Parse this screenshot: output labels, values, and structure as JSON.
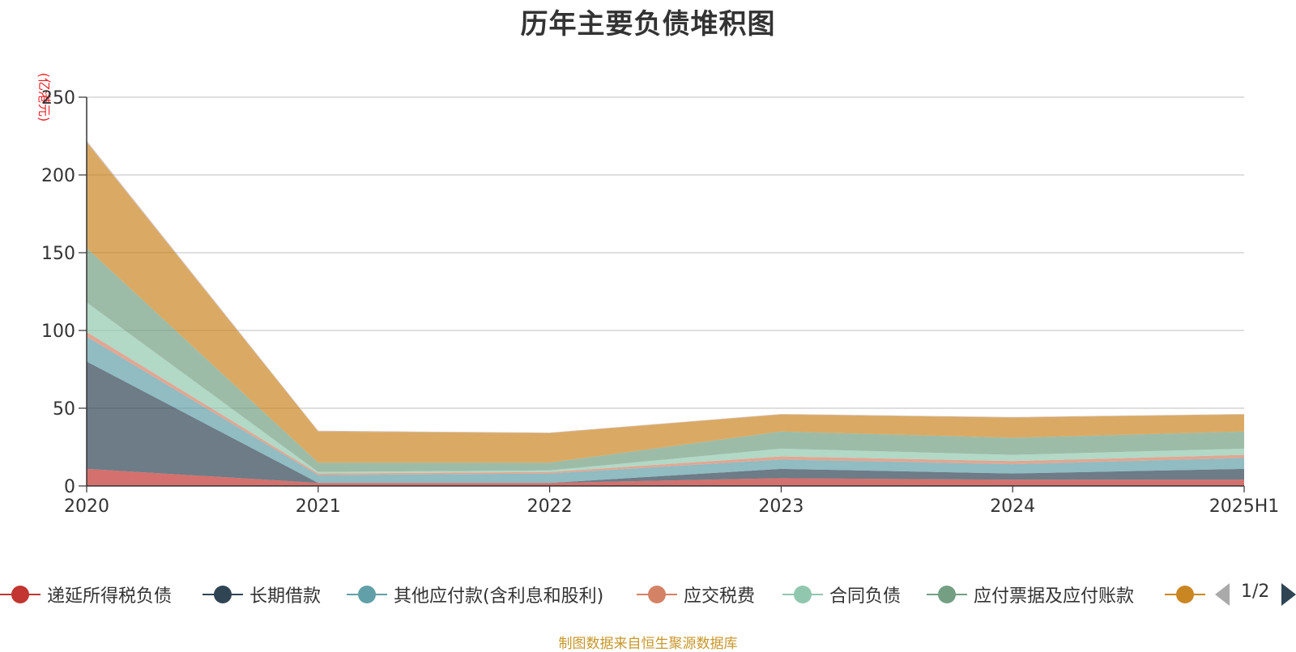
{
  "chart_data": {
    "type": "area",
    "title": "历年主要负债堆积图",
    "unit_label": "(亿港元)",
    "stacked": true,
    "categories": [
      "2020",
      "2021",
      "2022",
      "2023",
      "2024",
      "2025H1"
    ],
    "ylim": [
      0,
      250
    ],
    "yticks": [
      0,
      50,
      100,
      150,
      200,
      250
    ],
    "grid": true,
    "legend_position": "bottom",
    "series": [
      {
        "name": "递延所得税负债",
        "color": "#c23531",
        "values": [
          11,
          2,
          2,
          5,
          4,
          4
        ]
      },
      {
        "name": "长期借款",
        "color": "#2f4554",
        "values": [
          69,
          0,
          0,
          6,
          4,
          7
        ]
      },
      {
        "name": "其他应付款(含利息和股利)",
        "color": "#61a0a8",
        "values": [
          16,
          5,
          6,
          6,
          6,
          7
        ]
      },
      {
        "name": "应交税费",
        "color": "#d48265",
        "values": [
          3,
          1,
          1,
          2,
          2,
          2
        ]
      },
      {
        "name": "合同负债",
        "color": "#91c7ae",
        "values": [
          19,
          1,
          1,
          5,
          4,
          4
        ]
      },
      {
        "name": "应付票据及应付账款",
        "color": "#749f83",
        "values": [
          35,
          6,
          5,
          11,
          11,
          11
        ]
      },
      {
        "name": "",
        "color": "#ca8622",
        "values": [
          68,
          20,
          19,
          11,
          13,
          11
        ]
      },
      {
        "name": "",
        "color": "#bda29a",
        "values": [
          1,
          0.5,
          0.3,
          0.3,
          0.3,
          0.3
        ]
      }
    ]
  },
  "legend": {
    "page_indicator": "1/2"
  },
  "footer": {
    "source": "制图数据来自恒生聚源数据库"
  }
}
